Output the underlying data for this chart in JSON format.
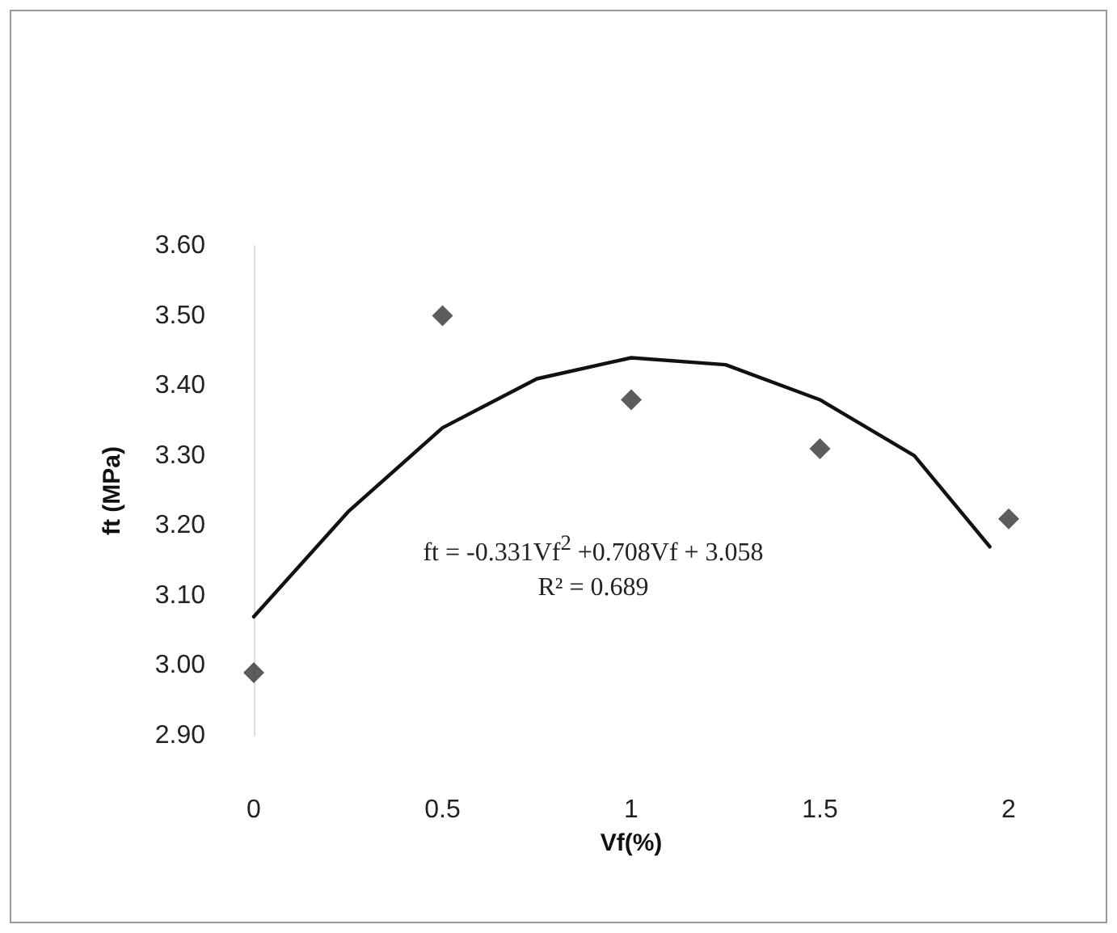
{
  "chart_data": {
    "type": "scatter",
    "xlabel": "Vf(%)",
    "ylabel": "ft (MPa)",
    "annotations": [
      "ft = -0.331Vf$^{2}$ +0.708Vf + 3.058",
      "R² = 0.689"
    ],
    "series": [
      {
        "color": "#333333",
        "marker": "diamond",
        "x": [
          0,
          0.5,
          1,
          1.5,
          2
        ],
        "values": [
          2.99,
          3.5,
          3.38,
          3.31,
          3.21
        ]
      },
      {
        "type": "line",
        "color": "#111111",
        "marker": "none",
        "line_style": "solid",
        "x": [
          0,
          0.25,
          0.5,
          0.75,
          1,
          1.25,
          1.5,
          1.75,
          1.95
        ],
        "values": [
          3.07,
          3.22,
          3.34,
          3.41,
          3.44,
          3.43,
          3.38,
          3.3,
          3.17
        ]
      }
    ],
    "xlim": [
      0,
      2
    ],
    "xticks": [
      0,
      0.5,
      1,
      1.5,
      2
    ],
    "ylim": [
      2.9,
      3.6
    ],
    "yticks": [
      {
        "value": 2.9,
        "label": "2.90"
      },
      {
        "value": 3.0,
        "label": "3.00"
      },
      {
        "value": 3.1,
        "label": "3.10"
      },
      {
        "value": 3.2,
        "label": "3.20"
      },
      {
        "value": 3.3,
        "label": "3.30"
      },
      {
        "value": 3.4,
        "label": "3.40"
      },
      {
        "value": 3.5,
        "label": "3.50"
      },
      {
        "value": 3.6,
        "label": "3.60"
      }
    ],
    "grid": false
  }
}
